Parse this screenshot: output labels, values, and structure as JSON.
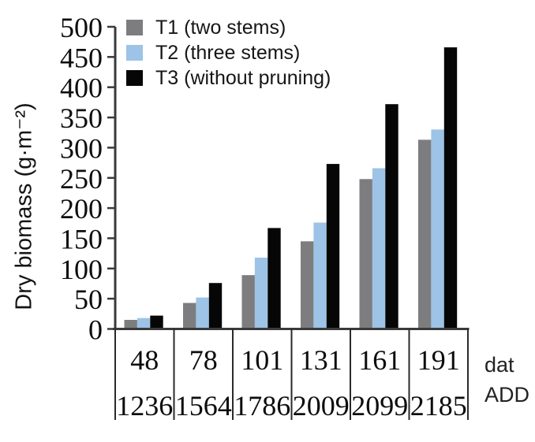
{
  "chart_data": {
    "type": "bar",
    "title": "",
    "ylabel": "Dry biomass (g·m⁻²)",
    "ylim": [
      0,
      500
    ],
    "ytick_step": 50,
    "yticks": [
      0,
      50,
      100,
      150,
      200,
      250,
      300,
      350,
      400,
      450,
      500
    ],
    "grid": false,
    "legend_position": "top-left-inside",
    "categories_dat": [
      "48",
      "78",
      "101",
      "131",
      "161",
      "191"
    ],
    "categories_add": [
      "1236",
      "1564",
      "1786",
      "2009",
      "2099",
      "2185"
    ],
    "row_labels": {
      "dat": "dat",
      "add": "ADD"
    },
    "series": [
      {
        "name": "T1 (two stems)",
        "color": "#7d7d7f",
        "values": [
          15,
          43,
          89,
          145,
          248,
          313
        ]
      },
      {
        "name": "T2 (three stems)",
        "color": "#9dc3e6",
        "values": [
          18,
          52,
          118,
          176,
          266,
          330
        ]
      },
      {
        "name": "T3 (without pruning)",
        "color": "#060606",
        "values": [
          22,
          76,
          167,
          273,
          372,
          466
        ]
      }
    ],
    "colors": {
      "axis": "#3a3a3a",
      "divider": "#2a2a2a",
      "text": "#0d0d0d"
    }
  }
}
